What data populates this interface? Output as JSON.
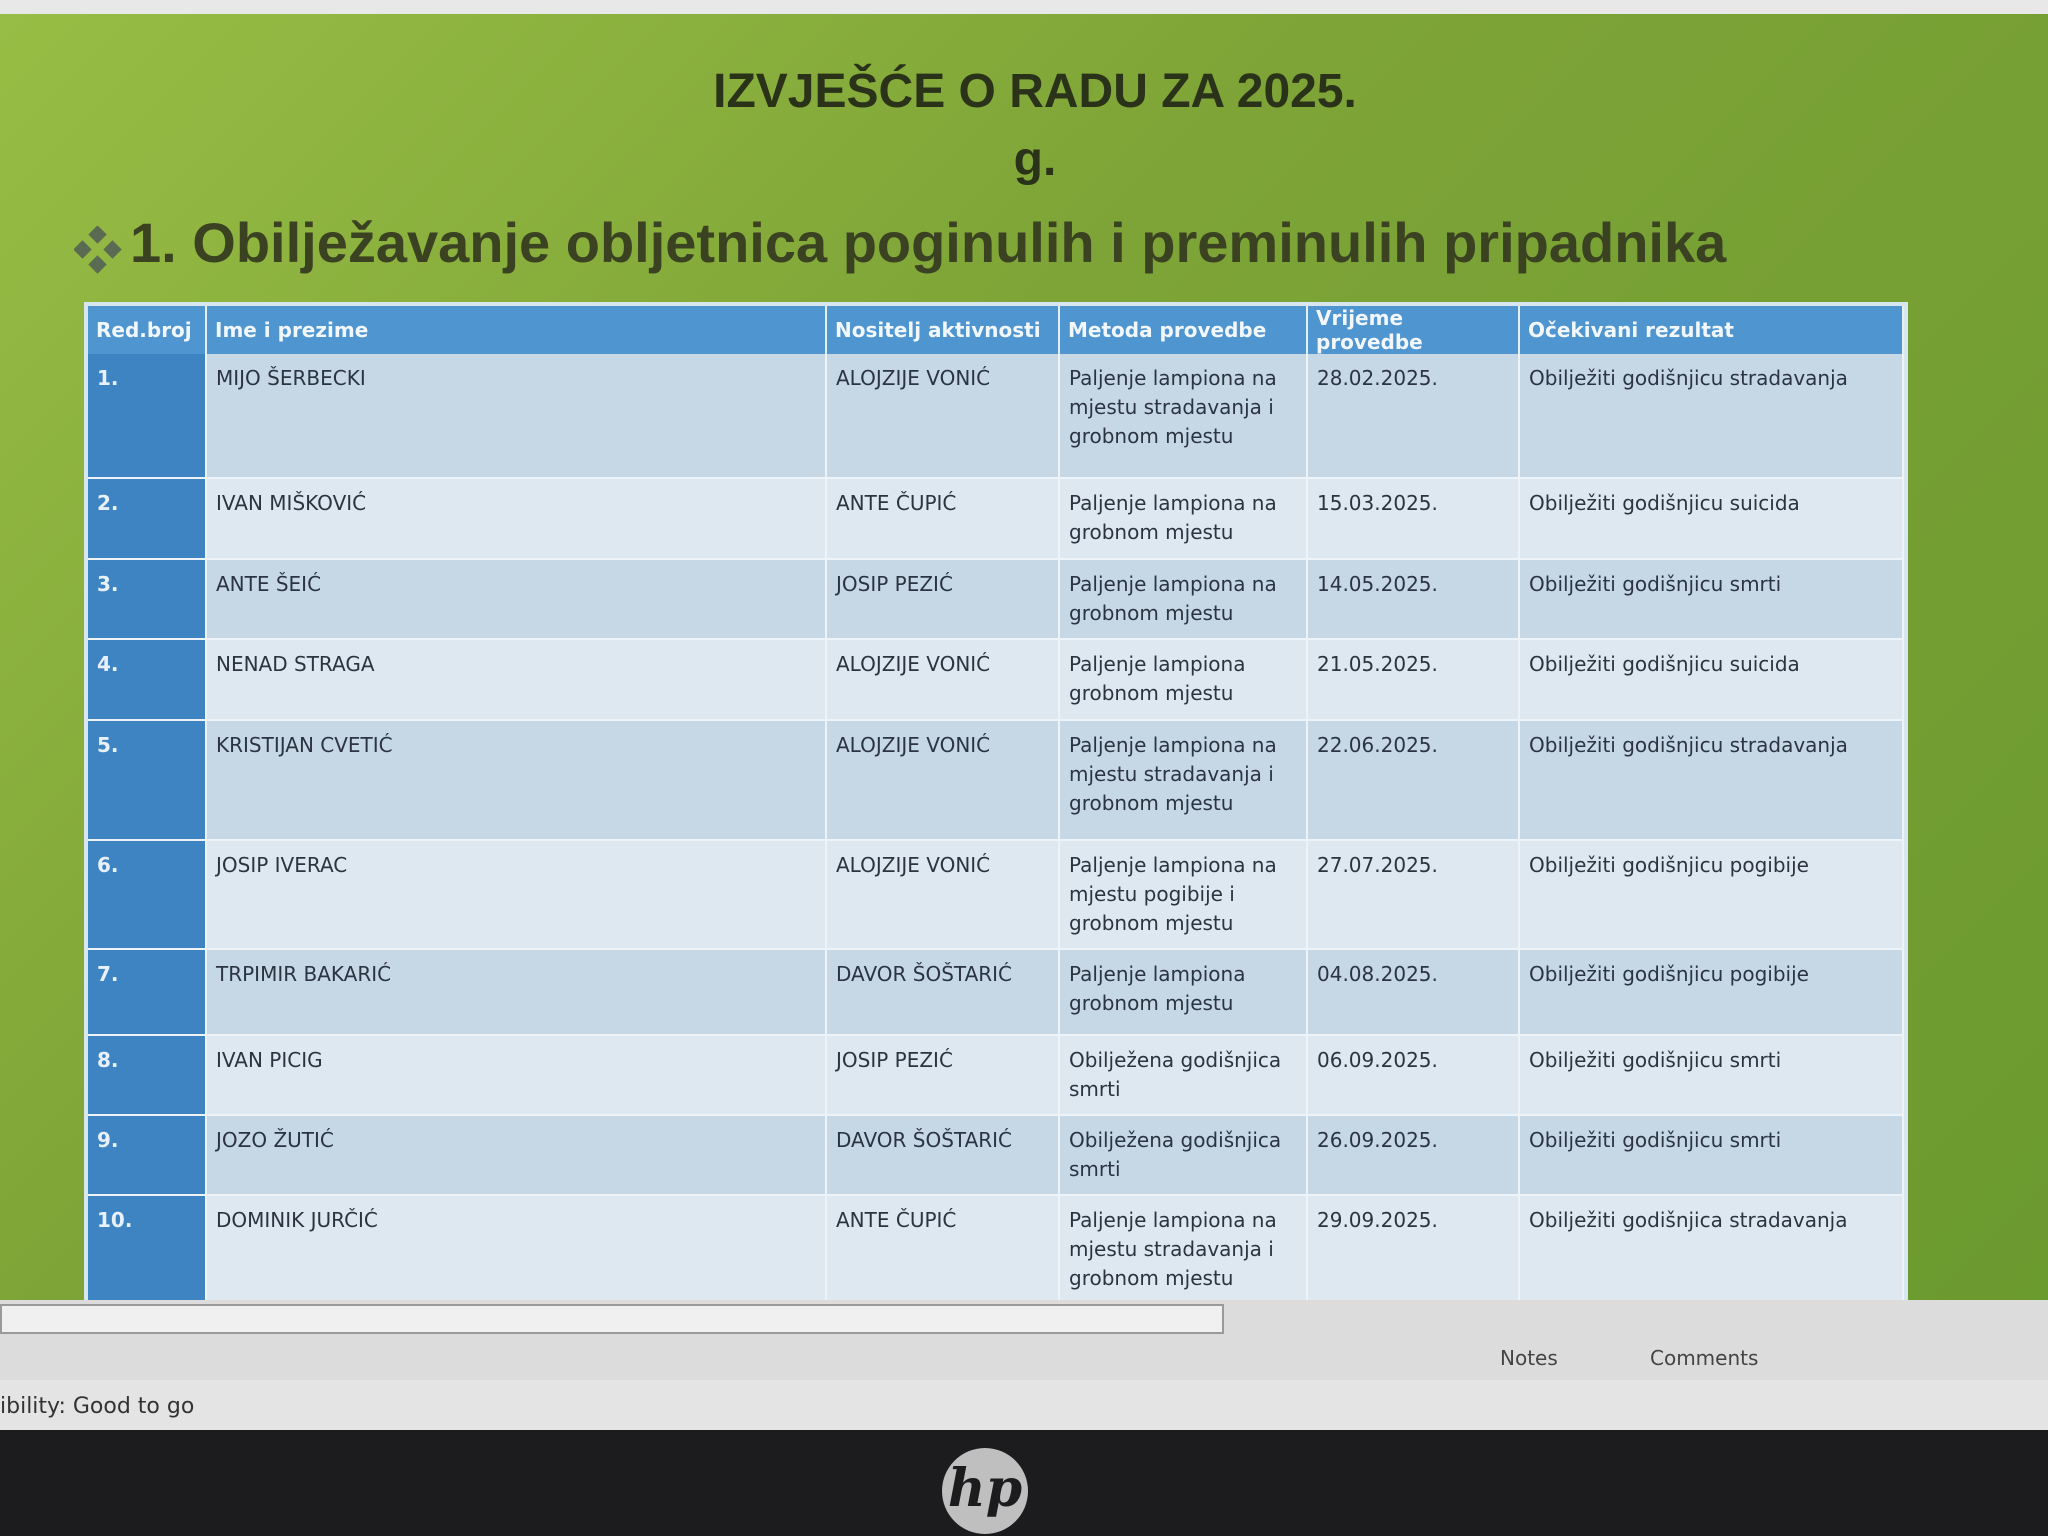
{
  "slide": {
    "title_line1": "IZVJEŠĆE O RADU ZA 2025.",
    "title_line2": "g.",
    "heading": "1. Obilježavanje obljetnica poginulih i preminulih pripadnika",
    "table": {
      "headers": [
        "Red.broj",
        "Ime i prezime",
        "Nositelj aktivnosti",
        "Metoda provedbe",
        "Vrijeme provedbe",
        "Očekivani rezultat"
      ],
      "rows": [
        [
          "1.",
          "MIJO ŠERBECKI",
          "ALOJZIJE VONIĆ",
          "Paljenje lampiona na mjestu stradavanja i grobnom mjestu",
          "28.02.2025.",
          "Obilježiti godišnjicu stradavanja"
        ],
        [
          "2.",
          "IVAN MIŠKOVIĆ",
          "ANTE ČUPIĆ",
          "Paljenje lampiona na grobnom mjestu",
          "15.03.2025.",
          "Obilježiti godišnjicu suicida"
        ],
        [
          "3.",
          "ANTE ŠEIĆ",
          "JOSIP PEZIĆ",
          "Paljenje lampiona na grobnom mjestu",
          "14.05.2025.",
          "Obilježiti godišnjicu smrti"
        ],
        [
          "4.",
          "NENAD STRAGA",
          "ALOJZIJE VONIĆ",
          "Paljenje lampiona grobnom mjestu",
          "21.05.2025.",
          "Obilježiti godišnjicu suicida"
        ],
        [
          "5.",
          "KRISTIJAN CVETIĆ",
          "ALOJZIJE VONIĆ",
          "Paljenje lampiona na mjestu stradavanja i grobnom mjestu",
          "22.06.2025.",
          "Obilježiti godišnjicu stradavanja"
        ],
        [
          "6.",
          "JOSIP IVERAC",
          "ALOJZIJE VONIĆ",
          "Paljenje lampiona na mjestu pogibije i grobnom mjestu",
          "27.07.2025.",
          "Obilježiti godišnjicu pogibije"
        ],
        [
          "7.",
          "TRPIMIR BAKARIĆ",
          "DAVOR ŠOŠTARIĆ",
          "Paljenje lampiona grobnom mjestu",
          "04.08.2025.",
          "Obilježiti godišnjicu pogibije"
        ],
        [
          "8.",
          "IVAN PICIG",
          "JOSIP PEZIĆ",
          "Obilježena godišnjica smrti",
          "06.09.2025.",
          "Obilježiti godišnjicu smrti"
        ],
        [
          "9.",
          "JOZO ŽUTIĆ",
          "DAVOR ŠOŠTARIĆ",
          "Obilježena godišnjica smrti",
          "26.09.2025.",
          "Obilježiti godišnjicu smrti"
        ],
        [
          "10.",
          "DOMINIK JURČIĆ",
          "ANTE ČUPIĆ",
          "Paljenje lampiona na mjestu stradavanja i grobnom mjestu",
          "29.09.2025.",
          "Obilježiti godišnjica stradavanja"
        ]
      ]
    }
  },
  "status_bar": {
    "notes": "Notes",
    "comments": "Comments",
    "accessibility": "ibility: Good to go"
  },
  "logo": "hp"
}
